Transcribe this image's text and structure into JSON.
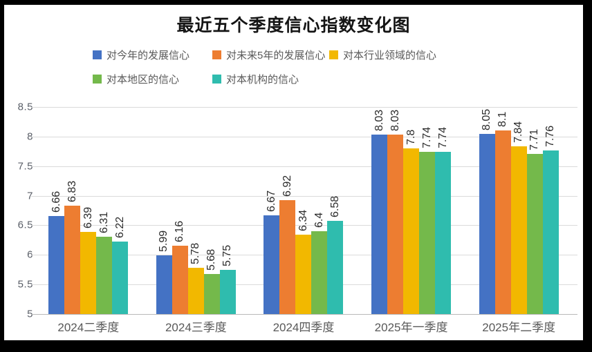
{
  "title": "最近五个季度信心指数变化图",
  "colors": {
    "frame": "#000000",
    "background": "#ffffff",
    "gridline": "#dadada",
    "axis_line": "#b9b9b9",
    "tick_label": "#595959",
    "data_label": "#2b2b2b"
  },
  "chart_data": {
    "type": "bar",
    "title": "最近五个季度信心指数变化图",
    "categories": [
      "2024二季度",
      "2024三季度",
      "2024四季度",
      "2025年一季度",
      "2025年二季度"
    ],
    "series": [
      {
        "name": "对今年的发展信心",
        "color": "#4472C4",
        "values": [
          6.66,
          5.99,
          6.67,
          8.03,
          8.05
        ]
      },
      {
        "name": "对未来5年的发展信心",
        "color": "#ED7D31",
        "values": [
          6.83,
          6.16,
          6.92,
          8.03,
          8.1
        ]
      },
      {
        "name": "对本行业领域的信心",
        "color": "#F2B800",
        "values": [
          6.39,
          5.78,
          6.34,
          7.8,
          7.84
        ]
      },
      {
        "name": "对本地区的信心",
        "color": "#74B94B",
        "values": [
          6.31,
          5.68,
          6.4,
          7.74,
          7.71
        ]
      },
      {
        "name": "对本机构的信心",
        "color": "#2FBCAE",
        "values": [
          6.22,
          5.75,
          6.58,
          7.74,
          7.76
        ]
      }
    ],
    "ylim": [
      5,
      8.5
    ],
    "yticks": [
      "8.5",
      "8",
      "7.5",
      "7",
      "6.5",
      "6",
      "5.5",
      "5"
    ],
    "grid": true,
    "legend_position": "top",
    "legend_rows": [
      [
        0,
        1,
        2
      ],
      [
        3,
        4
      ]
    ],
    "data_label_rotation": 90
  }
}
